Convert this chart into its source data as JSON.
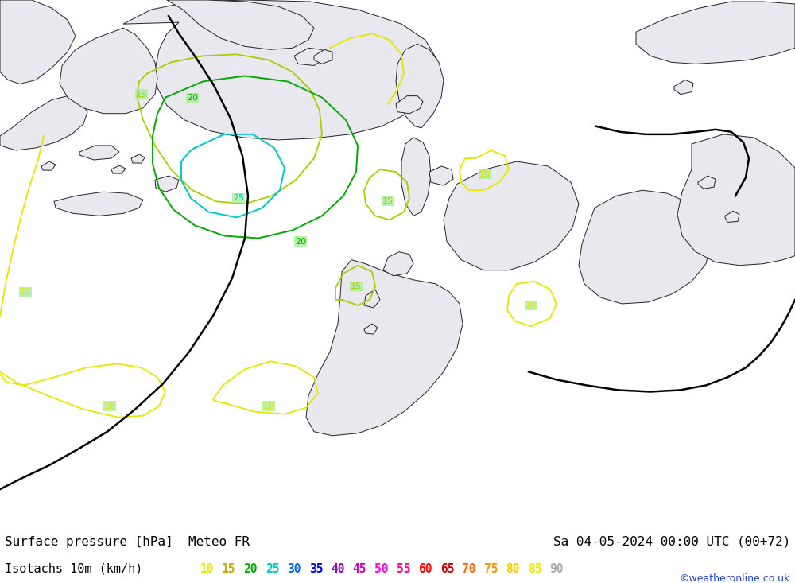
{
  "title_left": "Surface pressure [hPa]  Meteo FR",
  "title_right": "Sa 04-05-2024 00:00 UTC (00+72)",
  "legend_label": "Isotachs 10m (km/h)",
  "legend_values": [
    10,
    15,
    20,
    25,
    30,
    35,
    40,
    45,
    50,
    55,
    60,
    65,
    70,
    75,
    80,
    85,
    90
  ],
  "legend_colors": [
    "#e6e600",
    "#c8aa00",
    "#00aa00",
    "#00c8c8",
    "#0064ff",
    "#0000ff",
    "#9600c8",
    "#c800c8",
    "#ff00ff",
    "#ff0096",
    "#ff0000",
    "#c80000",
    "#ff6400",
    "#ff9600",
    "#ffc800",
    "#ffe600",
    "#cccccc"
  ],
  "copyright": "©weatheronline.co.uk",
  "map_bg": "#aaee99",
  "land_color": "#e8e8ee",
  "land_edge": "#222222",
  "sea_color": "#aaee99",
  "figsize": [
    10.0,
    7.33
  ],
  "dpi": 100,
  "c10": "#e6e600",
  "c15": "#aacc00",
  "c20": "#00aa00",
  "c25": "#00c8c8",
  "c30": "#0064ff",
  "cblack": "#000000"
}
